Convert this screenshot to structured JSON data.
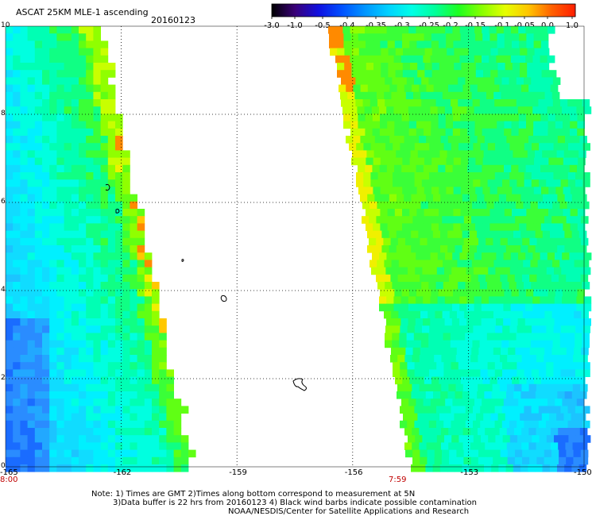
{
  "header": {
    "title": "ASCAT 25KM MLE-1 ascending",
    "date": "20160123"
  },
  "colorbar": {
    "labels": [
      "-3.0",
      "-1.0",
      "-0.5",
      "-0.4",
      "-0.35",
      "-0.3",
      "-0.25",
      "-0.2",
      "-0.15",
      "-0.1",
      "-0.05",
      "0.0",
      "1.0"
    ],
    "colors": [
      "#000000",
      "#3a0078",
      "#1010e0",
      "#0050ff",
      "#0096ff",
      "#00d2ff",
      "#00ffe6",
      "#00ff9a",
      "#1eff20",
      "#88ff00",
      "#e6ff00",
      "#ffc400",
      "#ff6000",
      "#ff1e00"
    ]
  },
  "map": {
    "x_axis_labels": [
      "-165",
      "-162",
      "-159",
      "-156",
      "-153",
      "-150"
    ],
    "y_axis_labels": [
      "10",
      "8",
      "6",
      "4",
      "2",
      "0"
    ],
    "x_range": [
      -165,
      -150
    ],
    "y_range": [
      0,
      10
    ],
    "swath_times": [
      "8:00",
      "7:59"
    ]
  },
  "footer": {
    "line1": "Note: 1) Times are GMT 2)Times along bottom correspond to measurement at 5N",
    "line2": "3)Data buffer is 22 hrs from 20160123 4) Black wind barbs indicate possible contamination",
    "line3": "NOAA/NESDIS/Center for Satellite Applications and Research"
  }
}
